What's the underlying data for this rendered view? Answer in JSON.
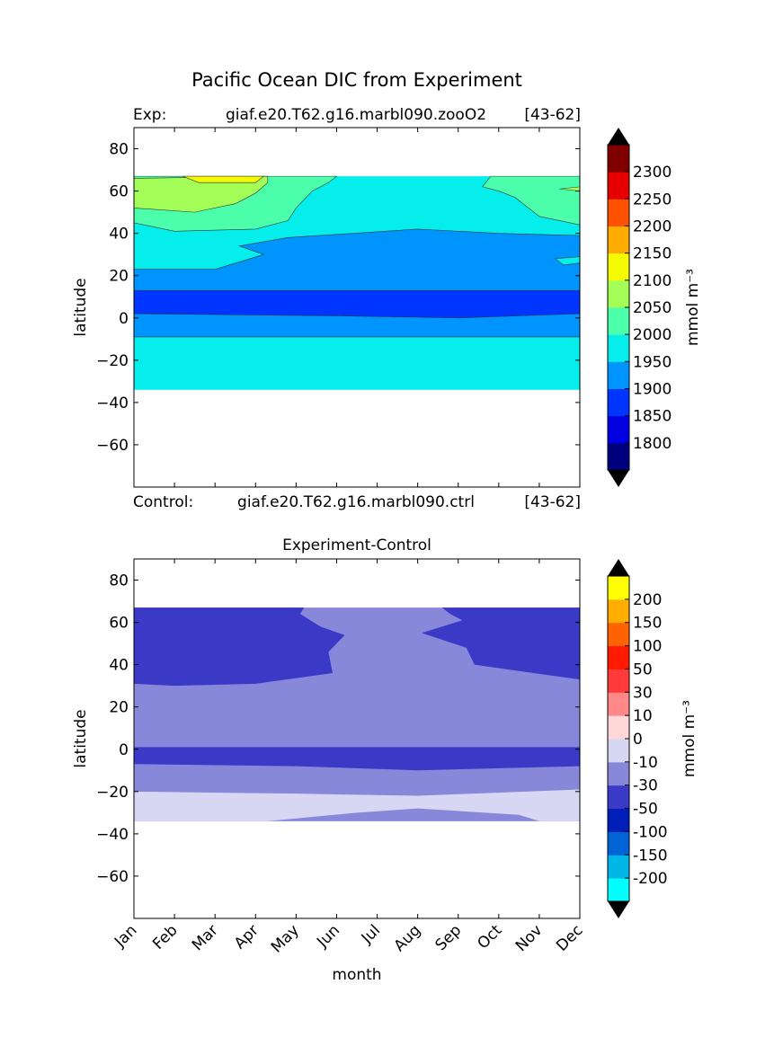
{
  "figure": {
    "title": "Pacific Ocean DIC from Experiment",
    "exp_label": "Exp:",
    "exp_name": "giaf.e20.T62.g16.marbl090.zooO2",
    "exp_years": "[43-62]",
    "ctrl_label": "Control:",
    "ctrl_name": "giaf.e20.T62.g16.marbl090.ctrl",
    "ctrl_years": "[43-62]"
  },
  "chart_data": [
    {
      "type": "heatmap",
      "title": "",
      "xlabel": "",
      "ylabel": "latitude",
      "ylim": [
        -80,
        90
      ],
      "yticks": [
        80,
        60,
        40,
        20,
        0,
        -20,
        -40,
        -60
      ],
      "ytick_labels": [
        "80",
        "60",
        "40",
        "20",
        "0",
        "−20",
        "−40",
        "−60"
      ],
      "x_categories": [
        "Jan",
        "Feb",
        "Mar",
        "Apr",
        "May",
        "Jun",
        "Jul",
        "Aug",
        "Sep",
        "Oct",
        "Nov",
        "Dec"
      ],
      "xtick_labels_shown": false,
      "data_extent_lat": [
        -34,
        67
      ],
      "colorbar": {
        "label": "mmol m⁻³",
        "tick_labels": [
          "1800",
          "1850",
          "1900",
          "1950",
          "2000",
          "2050",
          "2100",
          "2150",
          "2200",
          "2250",
          "2300"
        ],
        "levels": [
          1750,
          1800,
          1850,
          1900,
          1950,
          2000,
          2050,
          2100,
          2150,
          2200,
          2250,
          2300,
          2350
        ],
        "colors": [
          "#00007f",
          "#0000e3",
          "#0034ff",
          "#0094ff",
          "#05eeeb",
          "#4bffab",
          "#a3ff57",
          "#f4fa00",
          "#ffac00",
          "#ff5200",
          "#e60000",
          "#800000"
        ],
        "extend": "both",
        "extend_color": "#000000"
      },
      "bands": [
        {
          "value_range": [
            1950,
            2000
          ],
          "lat_range": [
            -34,
            -9
          ]
        },
        {
          "value_range": [
            1900,
            1950
          ],
          "lat_range": [
            -9,
            4
          ]
        },
        {
          "value_range": [
            1850,
            1900
          ],
          "lat_range": [
            4,
            13
          ]
        },
        {
          "value_range": [
            1900,
            1950
          ],
          "lat_range": [
            13,
            40
          ]
        },
        {
          "value_range": [
            1950,
            2000
          ],
          "lat_range": [
            40,
            67
          ]
        },
        {
          "value_range": [
            2000,
            2050
          ],
          "lat_range": [
            45,
            67
          ],
          "months": "Jan-May, Oct-Dec"
        },
        {
          "value_range": [
            2050,
            2100
          ],
          "lat_range": [
            51,
            66
          ],
          "months": "Jan-Apr"
        },
        {
          "value_range": [
            2100,
            2150
          ],
          "lat_range": [
            63,
            67
          ],
          "months": "Feb-Apr"
        }
      ]
    },
    {
      "type": "heatmap",
      "title": "Experiment-Control",
      "xlabel": "month",
      "ylabel": "latitude",
      "ylim": [
        -80,
        90
      ],
      "yticks": [
        80,
        60,
        40,
        20,
        0,
        -20,
        -40,
        -60
      ],
      "ytick_labels": [
        "80",
        "60",
        "40",
        "20",
        "0",
        "−20",
        "−40",
        "−60"
      ],
      "x_categories": [
        "Jan",
        "Feb",
        "Mar",
        "Apr",
        "May",
        "Jun",
        "Jul",
        "Aug",
        "Sep",
        "Oct",
        "Nov",
        "Dec"
      ],
      "data_extent_lat": [
        -34,
        67
      ],
      "colorbar": {
        "label": "mmol m⁻³",
        "tick_labels": [
          "-200",
          "-150",
          "-100",
          "-50",
          "-30",
          "-10",
          "0",
          "10",
          "30",
          "50",
          "100",
          "150",
          "200"
        ],
        "levels": [
          -250,
          -200,
          -150,
          -100,
          -50,
          -30,
          -10,
          0,
          10,
          30,
          50,
          100,
          150,
          200,
          250
        ],
        "colors": [
          "#00ffff",
          "#00b5e8",
          "#0063d6",
          "#001eb8",
          "#3a3ac6",
          "#8888da",
          "#d7d7f3",
          "#ffd7d7",
          "#ff8888",
          "#ff3a3a",
          "#ff1a00",
          "#ff6200",
          "#ffad00",
          "#ffff00"
        ],
        "extend": "both",
        "extend_color": "#000000"
      },
      "bands": [
        {
          "value_range": [
            -10,
            0
          ],
          "lat_range": [
            -34,
            -20
          ]
        },
        {
          "value_range": [
            -30,
            -10
          ],
          "lat_range": [
            -20,
            -8
          ]
        },
        {
          "value_range": [
            -50,
            -30
          ],
          "lat_range": [
            -8,
            1
          ]
        },
        {
          "value_range": [
            -30,
            -10
          ],
          "lat_range": [
            1,
            67
          ]
        },
        {
          "value_range": [
            -50,
            -30
          ],
          "lat_range": [
            30,
            67
          ],
          "months": "Jan-May, Oct-Dec"
        }
      ]
    }
  ]
}
